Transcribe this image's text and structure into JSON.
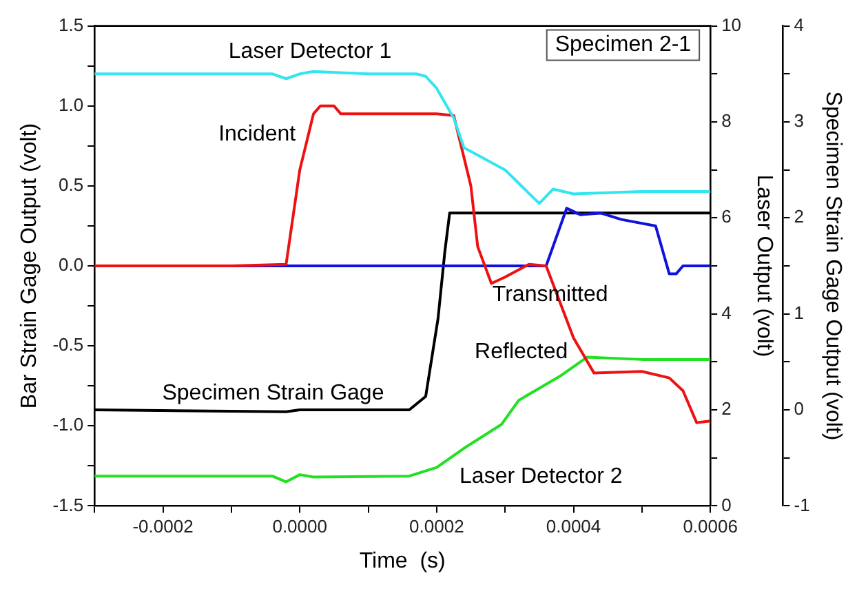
{
  "chart_data": {
    "type": "line",
    "xlabel": "Time  (s)",
    "ylabel": "Bar Strain Gage Output (volt)",
    "y2label": "Laser Output (volt)",
    "y3label": "Specimen Strain Gage Output (volt)",
    "xlim": [
      -0.0003,
      0.0006
    ],
    "xticks": [
      {
        "value": -0.0003,
        "label": null
      },
      {
        "value": -0.0002,
        "label": "-0.0002"
      },
      {
        "value": -0.0001,
        "label": null
      },
      {
        "value": 0,
        "label": "0.0000"
      },
      {
        "value": 0.0001,
        "label": null
      },
      {
        "value": 0.0002,
        "label": "0.0002"
      },
      {
        "value": 0.0003,
        "label": null
      },
      {
        "value": 0.0004,
        "label": "0.0004"
      },
      {
        "value": 0.0005,
        "label": null
      },
      {
        "value": 0.0006,
        "label": "0.0006"
      }
    ],
    "ylim": [
      -1.5,
      1.5
    ],
    "yticks": [
      -1.5,
      {
        "value": -1.25,
        "label": null
      },
      {
        "value": -1,
        "label": "-1.0"
      },
      {
        "value": -0.75,
        "label": null
      },
      {
        "value": -0.5,
        "label": "-0.5"
      },
      {
        "value": -0.25,
        "label": null
      },
      {
        "value": 0,
        "label": "0.0"
      },
      {
        "value": 0.25,
        "label": null
      },
      {
        "value": 0.5,
        "label": "0.5"
      },
      {
        "value": 0.75,
        "label": null
      },
      {
        "value": 1,
        "label": "1.0"
      },
      {
        "value": 1.25,
        "label": null
      },
      1.5
    ],
    "y2lim": [
      0,
      10
    ],
    "y2ticks": [
      0,
      {
        "value": 1,
        "label": null
      },
      2,
      {
        "value": 3,
        "label": null
      },
      4,
      {
        "value": 5,
        "label": null
      },
      6,
      {
        "value": 7,
        "label": null
      },
      8,
      {
        "value": 9,
        "label": null
      },
      10
    ],
    "y3lim": [
      -1,
      4
    ],
    "y3ticks": [
      -1,
      {
        "value": -0.5,
        "label": null
      },
      0,
      {
        "value": 0.5,
        "label": null
      },
      1,
      {
        "value": 1.5,
        "label": null
      },
      2,
      {
        "value": 2.5,
        "label": null
      },
      3,
      {
        "value": 3.5,
        "label": null
      },
      4
    ],
    "grid": false,
    "legend": false,
    "marker": "none",
    "line_style": "solid",
    "series": [
      {
        "color": "#33e5f0",
        "axis": "y2",
        "x": [
          -0.0003,
          -0.0001,
          -4e-05,
          -2e-05,
          0,
          2e-05,
          0.0001,
          0.00017,
          0.000184,
          0.0002,
          0.000225,
          0.00024,
          0.0003,
          0.00035,
          0.00037,
          0.0004,
          0.0005,
          0.0006
        ],
        "values": [
          9.0,
          9.0,
          9.0,
          8.9,
          9.0,
          9.05,
          9.0,
          9.0,
          8.95,
          8.7,
          8.08,
          7.46,
          7.0,
          6.3,
          6.6,
          6.5,
          6.55,
          6.55
        ]
      },
      {
        "color": "#ee1111",
        "x": [
          -0.0003,
          -0.0001,
          -2e-05,
          0,
          2e-05,
          3e-05,
          5e-05,
          6e-05,
          0.0001,
          0.0002,
          0.000225,
          0.00025,
          0.00026,
          0.00028,
          0.0003,
          0.000335,
          0.00036,
          0.0004,
          0.00043,
          0.0005,
          0.00054,
          0.00056,
          0.00058,
          0.0006
        ],
        "values": [
          0,
          0,
          0.01,
          0.6,
          0.95,
          1.0,
          1.0,
          0.95,
          0.95,
          0.95,
          0.94,
          0.5,
          0.12,
          -0.11,
          -0.07,
          0.01,
          0.0,
          -0.45,
          -0.67,
          -0.66,
          -0.7,
          -0.78,
          -0.98,
          -0.97
        ]
      },
      {
        "color": "#1111dd",
        "x": [
          -0.0003,
          0.0002,
          0.00036,
          0.00039,
          0.00041,
          0.00044,
          0.00047,
          0.00052,
          0.00054,
          0.00055,
          0.00056,
          0.00057,
          0.0006
        ],
        "values": [
          0,
          0,
          0,
          0.36,
          0.32,
          0.33,
          0.29,
          0.25,
          -0.05,
          -0.05,
          0.0,
          0.0,
          0.0
        ]
      },
      {
        "color": "#000000",
        "axis": "y3",
        "x": [
          -0.0003,
          -2e-05,
          0,
          0.00016,
          0.000184,
          0.000202,
          0.000212,
          0.000219,
          0.0006
        ],
        "values": [
          0,
          -0.02,
          0,
          0,
          0.14,
          0.95,
          1.65,
          2.05,
          2.05
        ]
      },
      {
        "color": "#22e022",
        "axis": "y2",
        "x": [
          -0.0003,
          -4e-05,
          -2e-05,
          0,
          2e-05,
          0.00016,
          0.0002,
          0.00024,
          0.000295,
          0.00032,
          0.00038,
          0.00042,
          0.0005,
          0.0006
        ],
        "values": [
          0.62,
          0.62,
          0.5,
          0.65,
          0.6,
          0.62,
          0.8,
          1.2,
          1.7,
          2.2,
          2.7,
          3.1,
          3.05,
          3.05
        ]
      }
    ],
    "annotations": [
      "Laser Detector 1",
      "Incident",
      "Transmitted",
      "Reflected",
      "Specimen Strain Gage",
      "Laser Detector 2",
      "Specimen 2-1"
    ]
  }
}
